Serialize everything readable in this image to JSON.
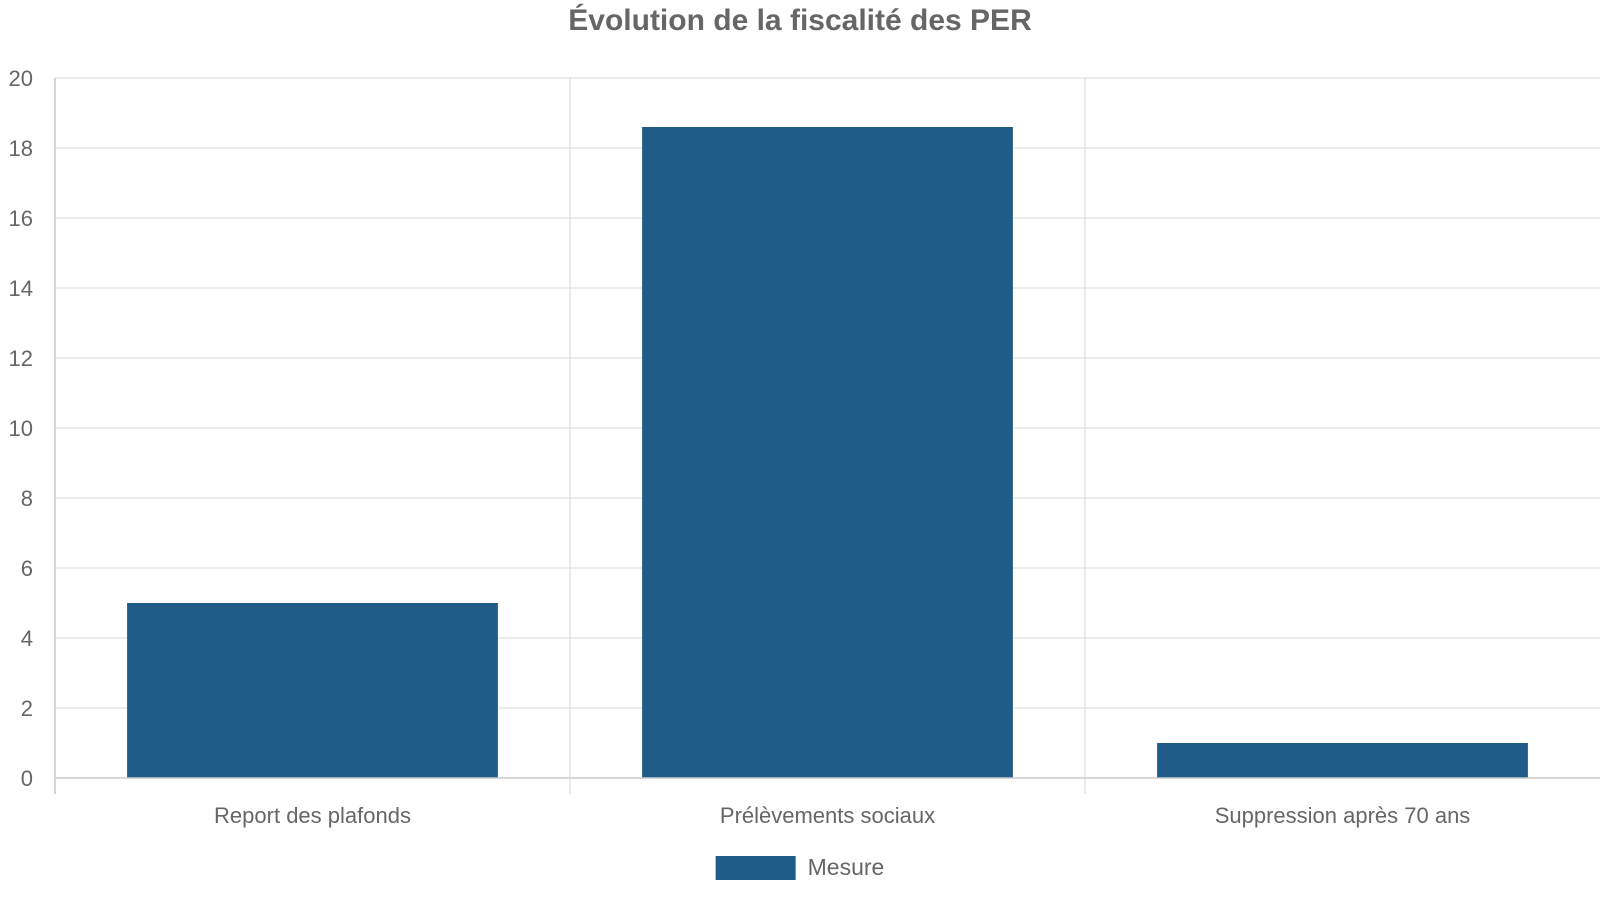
{
  "chart_data": {
    "type": "bar",
    "title": "Évolution de la fiscalité des PER",
    "xlabel": "",
    "ylabel": "",
    "categories": [
      "Report des plafonds",
      "Prélèvements sociaux",
      "Suppression après 70 ans"
    ],
    "series": [
      {
        "name": "Mesure",
        "values": [
          5,
          18.6,
          1
        ],
        "color": "#1f5c87"
      }
    ],
    "ylim": [
      0,
      20
    ],
    "yticks": [
      0,
      2,
      4,
      6,
      8,
      10,
      12,
      14,
      16,
      18,
      20
    ],
    "grid": true,
    "legend_position": "bottom-center"
  }
}
